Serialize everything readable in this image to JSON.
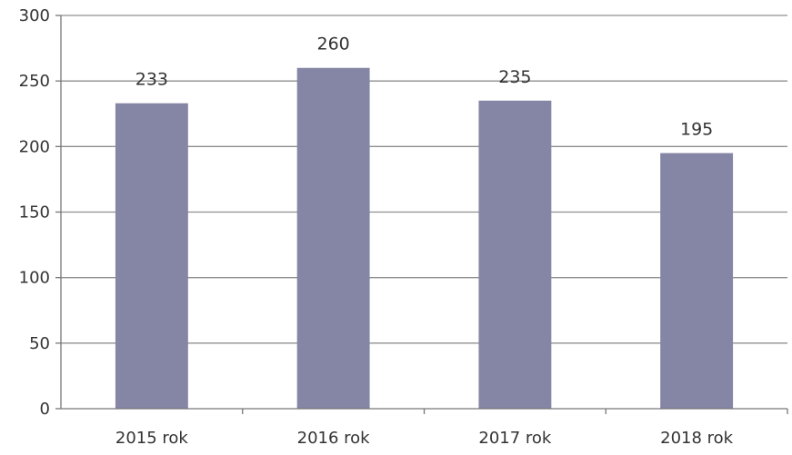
{
  "chart_data": {
    "type": "bar",
    "categories": [
      "2015 rok",
      "2016 rok",
      "2017 rok",
      "2018 rok"
    ],
    "values": [
      233,
      260,
      235,
      195
    ],
    "data_labels": [
      "233",
      "260",
      "235",
      "195"
    ],
    "title": "",
    "xlabel": "",
    "ylabel": "",
    "ylim": [
      0,
      300
    ],
    "yticks": [
      "0",
      "50",
      "100",
      "150",
      "200",
      "250",
      "300"
    ],
    "grid": true,
    "legend": "none",
    "colors": {
      "bar": "#8585a6",
      "grid": "#8f8f8f",
      "text": "#333333"
    }
  }
}
